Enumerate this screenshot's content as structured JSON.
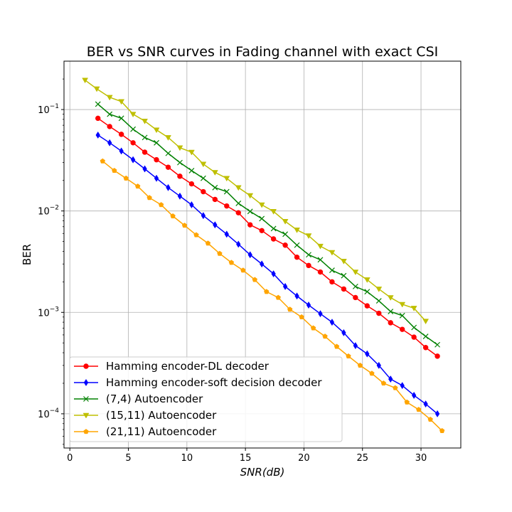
{
  "chart_data": {
    "type": "line",
    "title": "BER vs SNR curves in Fading channel with exact CSI",
    "xlabel": "SNR(dB)",
    "ylabel": "BER",
    "y_scale": "log",
    "xlim": [
      -0.5,
      33.4
    ],
    "ylim": [
      4.6e-05,
      0.3
    ],
    "x_ticks": [
      0,
      5,
      10,
      15,
      20,
      25,
      30
    ],
    "y_ticks": [
      {
        "value": 0.0001,
        "base": "10",
        "exp": "−4"
      },
      {
        "value": 0.001,
        "base": "10",
        "exp": "−3"
      },
      {
        "value": 0.01,
        "base": "10",
        "exp": "−2"
      },
      {
        "value": 0.1,
        "base": "10",
        "exp": "−1"
      }
    ],
    "grid": true,
    "legend_position": "lower-left",
    "series": [
      {
        "name": "Hamming encoder-DL decoder",
        "color": "#ff0000",
        "marker": "circle",
        "x": [
          2.4,
          3.4,
          4.4,
          5.4,
          6.4,
          7.4,
          8.4,
          9.4,
          10.4,
          11.4,
          12.4,
          13.4,
          14.4,
          15.4,
          16.4,
          17.4,
          18.4,
          19.4,
          20.4,
          21.4,
          22.4,
          23.4,
          24.4,
          25.4,
          26.4,
          27.4,
          28.4,
          29.4,
          30.4,
          31.4
        ],
        "y": [
          0.082,
          0.068,
          0.057,
          0.047,
          0.038,
          0.032,
          0.027,
          0.022,
          0.0185,
          0.0155,
          0.013,
          0.0112,
          0.0096,
          0.0073,
          0.0064,
          0.0053,
          0.0046,
          0.0035,
          0.0029,
          0.0025,
          0.002,
          0.0017,
          0.0014,
          0.00116,
          0.00098,
          0.00079,
          0.00068,
          0.00057,
          0.00045,
          0.00037
        ]
      },
      {
        "name": "Hamming encoder-soft decision decoder",
        "color": "#0000ff",
        "marker": "thin_diamond",
        "x": [
          2.4,
          3.4,
          4.4,
          5.4,
          6.4,
          7.4,
          8.4,
          9.4,
          10.4,
          11.4,
          12.4,
          13.4,
          14.4,
          15.4,
          16.4,
          17.4,
          18.4,
          19.4,
          20.4,
          21.4,
          22.4,
          23.4,
          24.4,
          25.4,
          26.4,
          27.4,
          28.4,
          29.4,
          30.4,
          31.4
        ],
        "y": [
          0.056,
          0.047,
          0.039,
          0.032,
          0.026,
          0.021,
          0.017,
          0.014,
          0.0115,
          0.009,
          0.0073,
          0.0059,
          0.0047,
          0.0037,
          0.003,
          0.0024,
          0.0018,
          0.00145,
          0.00118,
          0.00097,
          0.0008,
          0.00063,
          0.00047,
          0.00039,
          0.0003,
          0.00022,
          0.00019,
          0.000152,
          0.000125,
          0.0001
        ]
      },
      {
        "name": "(7,4) Autoencoder",
        "color": "#008000",
        "marker": "x",
        "x": [
          2.4,
          3.4,
          4.4,
          5.4,
          6.4,
          7.4,
          8.4,
          9.4,
          10.4,
          11.4,
          12.4,
          13.4,
          14.4,
          15.4,
          16.4,
          17.4,
          18.4,
          19.4,
          20.4,
          21.4,
          22.4,
          23.4,
          24.4,
          25.4,
          26.4,
          27.4,
          28.4,
          29.4,
          30.4,
          31.4
        ],
        "y": [
          0.113,
          0.09,
          0.082,
          0.064,
          0.053,
          0.047,
          0.037,
          0.03,
          0.025,
          0.021,
          0.017,
          0.0155,
          0.0119,
          0.0099,
          0.0084,
          0.0067,
          0.0059,
          0.0046,
          0.0037,
          0.0033,
          0.0026,
          0.0023,
          0.0018,
          0.0016,
          0.0013,
          0.00102,
          0.00093,
          0.00071,
          0.00058,
          0.00048
        ]
      },
      {
        "name": "(15,11) Autoencoder",
        "color": "#bfbf00",
        "marker": "triangle_down",
        "x": [
          1.3,
          2.3,
          3.4,
          4.4,
          5.4,
          6.4,
          7.4,
          8.4,
          9.4,
          10.4,
          11.4,
          12.4,
          13.4,
          14.4,
          15.4,
          16.4,
          17.4,
          18.4,
          19.4,
          20.4,
          21.4,
          22.4,
          23.4,
          24.4,
          25.4,
          26.4,
          27.4,
          28.4,
          29.4,
          30.4
        ],
        "y": [
          0.195,
          0.16,
          0.132,
          0.12,
          0.09,
          0.077,
          0.063,
          0.053,
          0.042,
          0.038,
          0.029,
          0.024,
          0.021,
          0.017,
          0.0142,
          0.0115,
          0.0099,
          0.0079,
          0.0065,
          0.0057,
          0.0045,
          0.0039,
          0.0032,
          0.0025,
          0.0021,
          0.0017,
          0.0014,
          0.0012,
          0.0011,
          0.00082
        ]
      },
      {
        "name": "(21,11) Autoencoder",
        "color": "#ffa500",
        "marker": "pentagon",
        "x": [
          2.8,
          3.8,
          4.8,
          5.8,
          6.8,
          7.8,
          8.8,
          9.8,
          10.8,
          11.8,
          12.8,
          13.8,
          14.8,
          15.8,
          16.8,
          17.8,
          18.8,
          19.8,
          20.8,
          21.8,
          22.8,
          23.8,
          24.8,
          25.8,
          26.8,
          27.8,
          28.8,
          29.8,
          30.8,
          31.8
        ],
        "y": [
          0.031,
          0.025,
          0.021,
          0.0175,
          0.0135,
          0.0115,
          0.0089,
          0.0072,
          0.0058,
          0.0048,
          0.0038,
          0.0031,
          0.0026,
          0.0021,
          0.0016,
          0.0014,
          0.00107,
          0.0009,
          0.0007,
          0.00058,
          0.00046,
          0.00037,
          0.0003,
          0.00025,
          0.0002,
          0.00018,
          0.00013,
          0.00011,
          8.8e-05,
          6.8e-05
        ]
      }
    ]
  }
}
